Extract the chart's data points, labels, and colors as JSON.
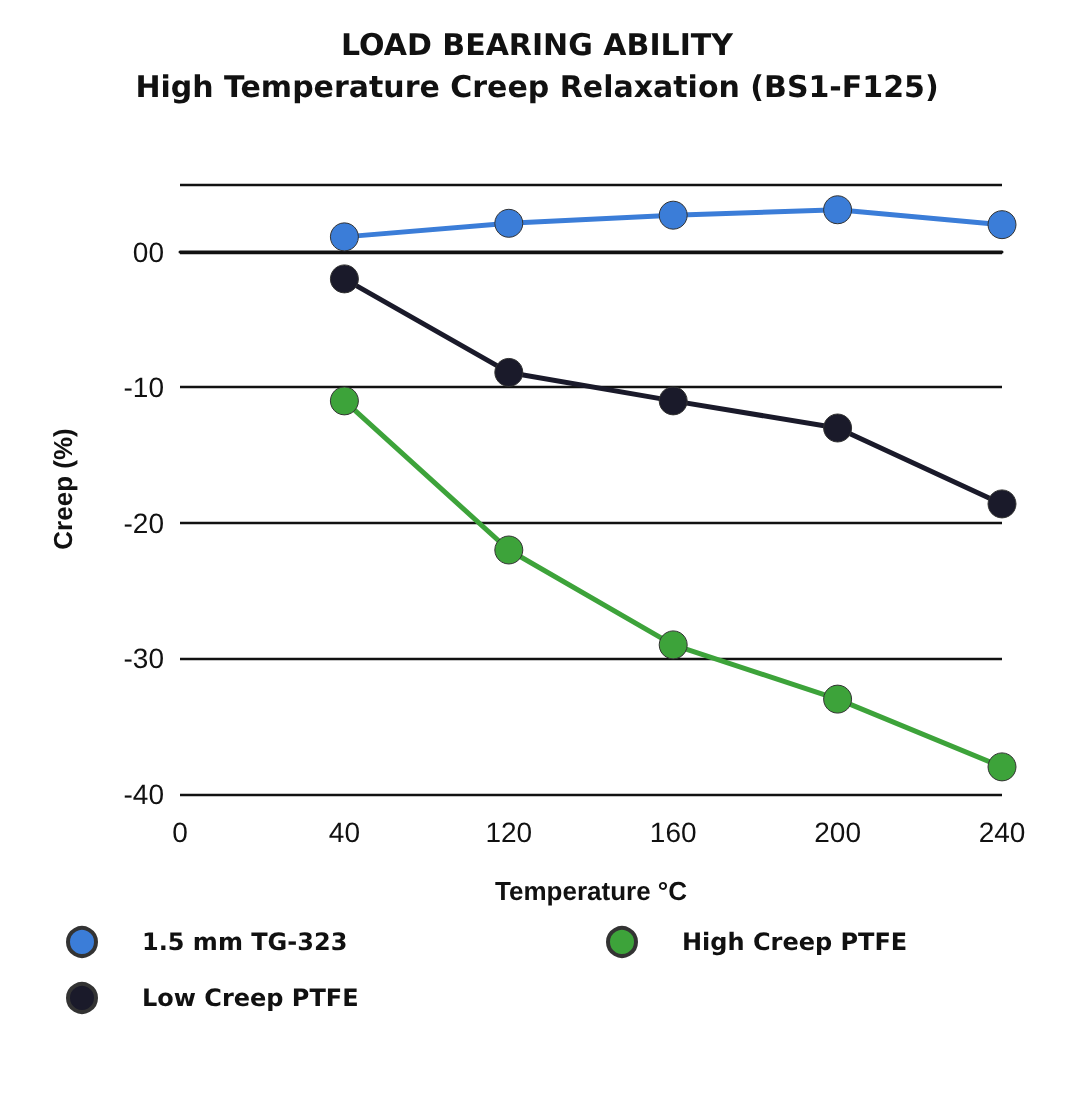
{
  "chart_data": {
    "type": "line",
    "title": "LOAD BEARING ABILITY",
    "subtitle": "High Temperature Creep Relaxation (BS1-F125)",
    "xlabel": "Temperature °C",
    "ylabel": "Creep (%)",
    "categories": [
      "0",
      "40",
      "120",
      "160",
      "200",
      "240"
    ],
    "series": [
      {
        "name": "1.5 mm TG-323",
        "color": "#3b7dd8",
        "values": [
          null,
          1.1,
          2.1,
          2.7,
          3.1,
          2.0
        ]
      },
      {
        "name": "Low Creep PTFE",
        "color": "#1a1a2a",
        "values": [
          null,
          -2.0,
          -8.9,
          -11.0,
          -13.0,
          -18.6
        ]
      },
      {
        "name": "High Creep PTFE",
        "color": "#3da33a",
        "values": [
          null,
          -11.0,
          -22.0,
          -29.0,
          -33.0,
          -38.0
        ]
      }
    ],
    "ylim": [
      -40,
      5
    ],
    "yticks": [
      -40,
      -30,
      -20,
      -10,
      {
        "value": 0,
        "label": "00"
      },
      {
        "value": 5,
        "label": null
      }
    ],
    "grid": "y",
    "legend": "bottom",
    "marker": "circle",
    "line_style": "solid"
  }
}
